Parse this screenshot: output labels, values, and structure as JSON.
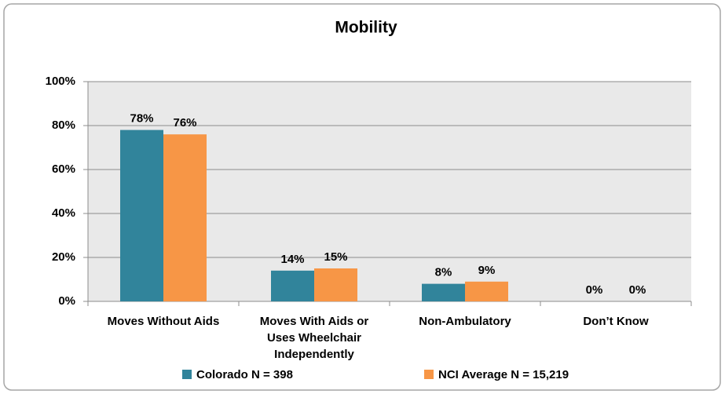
{
  "chart_data": {
    "type": "bar",
    "title": "Mobility",
    "categories": [
      "Moves Without Aids",
      "Moves With Aids or Uses Wheelchair Independently",
      "Non-Ambulatory",
      "Don’t Know"
    ],
    "series": [
      {
        "name": "Colorado N = 398",
        "color": "#31849b",
        "values": [
          78,
          14,
          8,
          0
        ],
        "value_labels": [
          "78%",
          "14%",
          "8%",
          "0%"
        ]
      },
      {
        "name": "NCI Average N = 15,219",
        "color": "#f79646",
        "values": [
          76,
          15,
          9,
          0
        ],
        "value_labels": [
          "76%",
          "15%",
          "9%",
          "0%"
        ]
      }
    ],
    "ylim": [
      0,
      100
    ],
    "yticks": [
      {
        "value": 0,
        "label": "0%"
      },
      {
        "value": 20,
        "label": "20%"
      },
      {
        "value": 40,
        "label": "40%"
      },
      {
        "value": 60,
        "label": "60%"
      },
      {
        "value": 80,
        "label": "80%"
      },
      {
        "value": 100,
        "label": "100%"
      }
    ],
    "grid": true,
    "legend": "bottom"
  }
}
